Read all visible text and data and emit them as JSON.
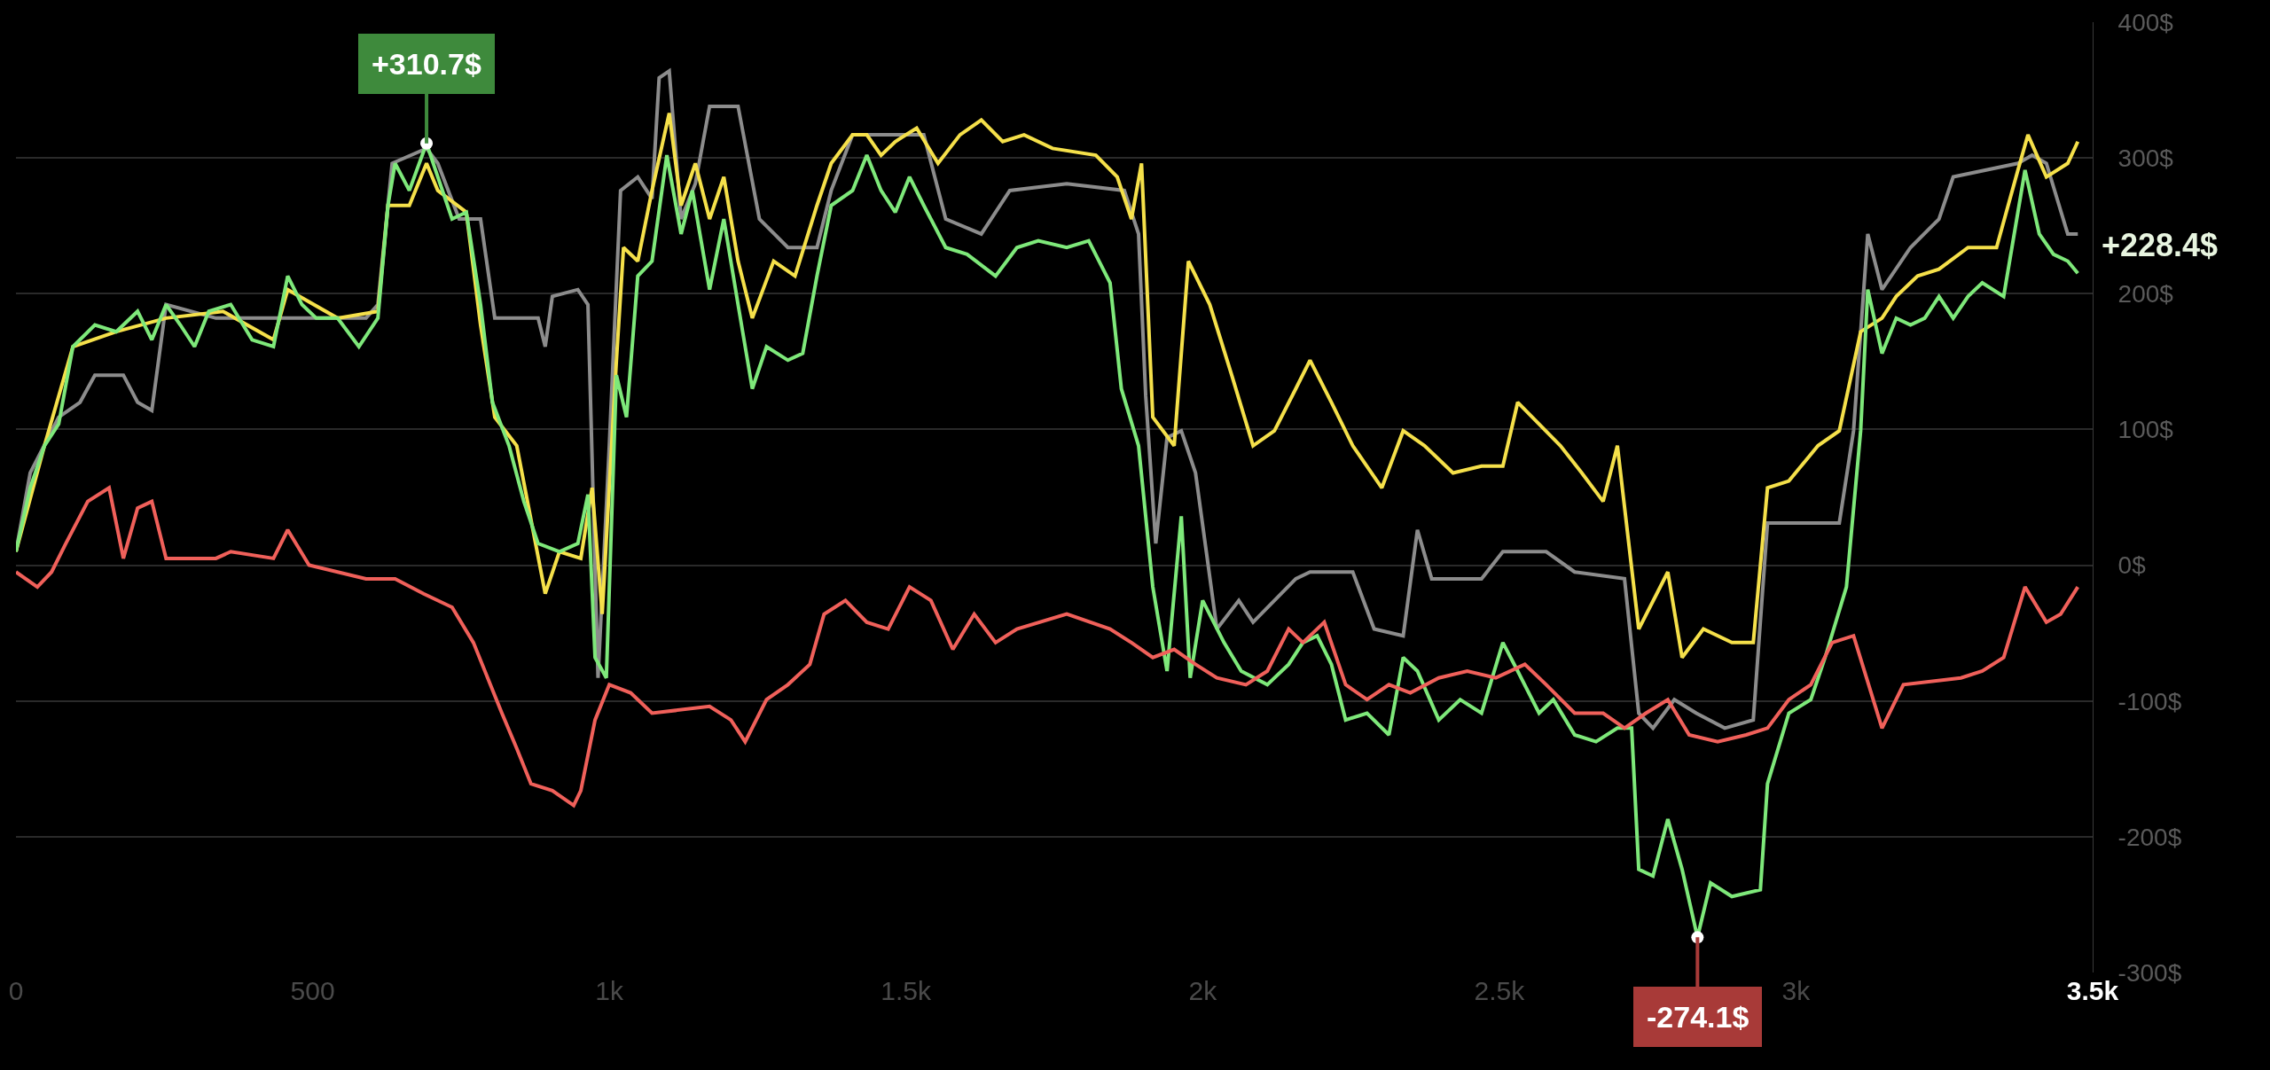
{
  "chart_data": {
    "type": "line",
    "line_style": "solid",
    "marker": "none",
    "grid": "y",
    "xlim": [
      0,
      3500
    ],
    "xticks": [
      0,
      500,
      {
        "value": 1000,
        "label": "1k"
      },
      {
        "value": 1500,
        "label": "1.5k"
      },
      {
        "value": 2000,
        "label": "2k"
      },
      {
        "value": 2500,
        "label": "2.5k"
      },
      {
        "value": 3000,
        "label": "3k"
      },
      {
        "value": 3500,
        "label": "3.5k"
      }
    ],
    "ylim": [
      -300,
      400
    ],
    "yticks": [
      {
        "value": -300,
        "label": "-300$"
      },
      {
        "value": -200,
        "label": "-200$"
      },
      {
        "value": -100,
        "label": "-100$"
      },
      {
        "value": 0,
        "label": "0$"
      },
      {
        "value": 100,
        "label": "100$"
      },
      {
        "value": 200,
        "label": "200$"
      },
      {
        "value": 300,
        "label": "300$"
      },
      {
        "value": 400,
        "label": "400$"
      }
    ],
    "series": [
      {
        "color": "#8c8c8c",
        "x": [
          0,
          24,
          72,
          108,
          133,
          181,
          205,
          229,
          253,
          337,
          590,
          610,
          634,
          692,
          711,
          747,
          783,
          807,
          880,
          892,
          904,
          947,
          964,
          981,
          1000,
          1019,
          1048,
          1072,
          1084,
          1101,
          1121,
          1145,
          1169,
          1217,
          1253,
          1301,
          1350,
          1374,
          1410,
          1482,
          1530,
          1567,
          1627,
          1675,
          1771,
          1868,
          1892,
          1904,
          1921,
          1940,
          1964,
          1988,
          2024,
          2061,
          2085,
          2157,
          2181,
          2253,
          2289,
          2338,
          2362,
          2386,
          2470,
          2506,
          2579,
          2627,
          2711,
          2735,
          2759,
          2795,
          2832,
          2880,
          2928,
          2952,
          3073,
          3097,
          3121,
          3145,
          3193,
          3241,
          3265,
          3374,
          3398,
          3422,
          3458,
          3475
        ],
        "values": [
          10,
          68,
          109,
          120,
          140,
          140,
          120,
          114,
          192,
          182,
          182,
          192,
          296,
          307,
          296,
          255,
          255,
          182,
          182,
          161,
          198,
          203,
          192,
          -83,
          88,
          276,
          286,
          270,
          359,
          364,
          255,
          281,
          338,
          338,
          255,
          234,
          234,
          276,
          317,
          317,
          317,
          255,
          244,
          276,
          281,
          276,
          244,
          125,
          16,
          94,
          99,
          68,
          -47,
          -26,
          -42,
          -10,
          -5,
          -5,
          -47,
          -52,
          26,
          -10,
          -10,
          10,
          10,
          -5,
          -10,
          -109,
          -120,
          -99,
          -109,
          -120,
          -114,
          31,
          31,
          99,
          244,
          203,
          234,
          255,
          286,
          296,
          302,
          296,
          244,
          244
        ]
      },
      {
        "color": "#f5e04a",
        "x": [
          0,
          48,
          96,
          169,
          253,
          349,
          434,
          458,
          542,
          610,
          627,
          663,
          692,
          711,
          759,
          783,
          807,
          844,
          892,
          916,
          952,
          971,
          988,
          1012,
          1024,
          1048,
          1072,
          1101,
          1121,
          1145,
          1169,
          1193,
          1217,
          1241,
          1277,
          1313,
          1350,
          1374,
          1410,
          1434,
          1458,
          1482,
          1518,
          1554,
          1591,
          1627,
          1663,
          1699,
          1747,
          1820,
          1856,
          1880,
          1897,
          1916,
          1952,
          1976,
          2012,
          2049,
          2085,
          2121,
          2157,
          2181,
          2217,
          2253,
          2302,
          2338,
          2374,
          2422,
          2470,
          2506,
          2531,
          2567,
          2603,
          2639,
          2675,
          2699,
          2735,
          2784,
          2808,
          2844,
          2892,
          2928,
          2952,
          2988,
          3037,
          3073,
          3109,
          3145,
          3169,
          3205,
          3241,
          3290,
          3338,
          3374,
          3391,
          3422,
          3458,
          3475
        ],
        "values": [
          10,
          88,
          161,
          172,
          182,
          187,
          166,
          203,
          182,
          187,
          265,
          265,
          296,
          276,
          260,
          177,
          109,
          88,
          -21,
          10,
          5,
          57,
          -36,
          151,
          234,
          224,
          276,
          333,
          265,
          296,
          255,
          286,
          224,
          182,
          224,
          213,
          265,
          296,
          317,
          317,
          302,
          312,
          322,
          296,
          317,
          328,
          312,
          317,
          307,
          302,
          286,
          255,
          296,
          109,
          88,
          224,
          192,
          140,
          88,
          99,
          130,
          151,
          120,
          88,
          57,
          99,
          88,
          68,
          73,
          73,
          120,
          104,
          88,
          68,
          47,
          88,
          -47,
          -5,
          -68,
          -47,
          -57,
          -57,
          57,
          62,
          88,
          99,
          172,
          182,
          198,
          213,
          218,
          234,
          234,
          291,
          317,
          286,
          296,
          312
        ]
      },
      {
        "color": "#7ee87a",
        "x": [
          0,
          24,
          48,
          72,
          96,
          133,
          169,
          205,
          229,
          253,
          277,
          301,
          325,
          362,
          398,
          434,
          458,
          482,
          506,
          542,
          578,
          610,
          627,
          639,
          663,
          692,
          711,
          735,
          759,
          783,
          803,
          831,
          856,
          880,
          916,
          947,
          964,
          976,
          995,
          1012,
          1029,
          1048,
          1072,
          1097,
          1121,
          1140,
          1169,
          1193,
          1217,
          1241,
          1265,
          1301,
          1326,
          1350,
          1374,
          1410,
          1434,
          1458,
          1482,
          1506,
          1530,
          1567,
          1603,
          1651,
          1687,
          1723,
          1771,
          1808,
          1844,
          1863,
          1892,
          1916,
          1940,
          1964,
          1979,
          2000,
          2036,
          2065,
          2109,
          2145,
          2169,
          2193,
          2217,
          2241,
          2277,
          2314,
          2338,
          2362,
          2398,
          2434,
          2470,
          2506,
          2531,
          2567,
          2591,
          2627,
          2663,
          2699,
          2723,
          2735,
          2759,
          2784,
          2808,
          2834,
          2856,
          2892,
          2940,
          2952,
          2988,
          3025,
          3049,
          3085,
          3109,
          3121,
          3145,
          3169,
          3193,
          3217,
          3241,
          3265,
          3290,
          3314,
          3350,
          3386,
          3410,
          3434,
          3458,
          3475
        ],
        "values": [
          10,
          57,
          88,
          104,
          161,
          177,
          172,
          187,
          166,
          192,
          177,
          161,
          187,
          192,
          166,
          161,
          213,
          192,
          182,
          182,
          161,
          182,
          265,
          296,
          276,
          310.7,
          286,
          255,
          260,
          192,
          120,
          88,
          47,
          16,
          10,
          16,
          52,
          -68,
          -83,
          140,
          109,
          213,
          224,
          302,
          244,
          276,
          203,
          255,
          192,
          130,
          161,
          151,
          156,
          213,
          265,
          276,
          302,
          276,
          260,
          286,
          265,
          234,
          229,
          213,
          234,
          239,
          234,
          239,
          208,
          130,
          88,
          -16,
          -78,
          36,
          -83,
          -26,
          -57,
          -78,
          -88,
          -73,
          -57,
          -52,
          -73,
          -114,
          -109,
          -125,
          -68,
          -78,
          -114,
          -99,
          -109,
          -57,
          -78,
          -109,
          -99,
          -125,
          -130,
          -120,
          -120,
          -224,
          -229,
          -187,
          -224,
          -274.1,
          -234,
          -244,
          -239,
          -161,
          -109,
          -99,
          -68,
          -16,
          99,
          203,
          156,
          182,
          177,
          182,
          198,
          182,
          198,
          208,
          198,
          291,
          244,
          229,
          224,
          215
        ]
      },
      {
        "color": "#f0605a",
        "x": [
          0,
          36,
          60,
          84,
          121,
          157,
          181,
          205,
          229,
          253,
          337,
          362,
          434,
          458,
          494,
          590,
          639,
          687,
          735,
          771,
          795,
          819,
          844,
          868,
          904,
          940,
          952,
          976,
          1000,
          1036,
          1072,
          1169,
          1205,
          1229,
          1265,
          1301,
          1338,
          1362,
          1398,
          1434,
          1470,
          1506,
          1542,
          1579,
          1615,
          1651,
          1687,
          1771,
          1844,
          1880,
          1916,
          1952,
          1988,
          2024,
          2073,
          2109,
          2145,
          2169,
          2205,
          2241,
          2277,
          2314,
          2350,
          2398,
          2446,
          2494,
          2543,
          2579,
          2627,
          2675,
          2711,
          2747,
          2784,
          2820,
          2868,
          2916,
          2952,
          2988,
          3025,
          3061,
          3097,
          3145,
          3181,
          3278,
          3314,
          3350,
          3386,
          3422,
          3446,
          3475
        ],
        "values": [
          -5,
          -16,
          -5,
          16,
          47,
          57,
          5,
          42,
          47,
          5,
          5,
          10,
          5,
          26,
          0,
          -10,
          -10,
          -21,
          -31,
          -57,
          -83,
          -109,
          -135,
          -161,
          -166,
          -177,
          -166,
          -114,
          -88,
          -94,
          -109,
          -104,
          -114,
          -130,
          -99,
          -88,
          -73,
          -36,
          -26,
          -42,
          -47,
          -16,
          -26,
          -62,
          -36,
          -57,
          -47,
          -36,
          -47,
          -57,
          -68,
          -62,
          -73,
          -83,
          -88,
          -78,
          -47,
          -57,
          -42,
          -88,
          -99,
          -88,
          -94,
          -83,
          -78,
          -83,
          -73,
          -88,
          -109,
          -109,
          -120,
          -109,
          -99,
          -125,
          -130,
          -125,
          -120,
          -99,
          -88,
          -57,
          -52,
          -120,
          -88,
          -83,
          -78,
          -68,
          -16,
          -42,
          -36,
          -16
        ]
      }
    ],
    "annotations": [
      {
        "text": "+310.7$",
        "x": 692,
        "y": 310.7
      },
      {
        "text": "-274.1$",
        "x": 2834,
        "y": -274.1
      },
      "+228.4$"
    ]
  }
}
